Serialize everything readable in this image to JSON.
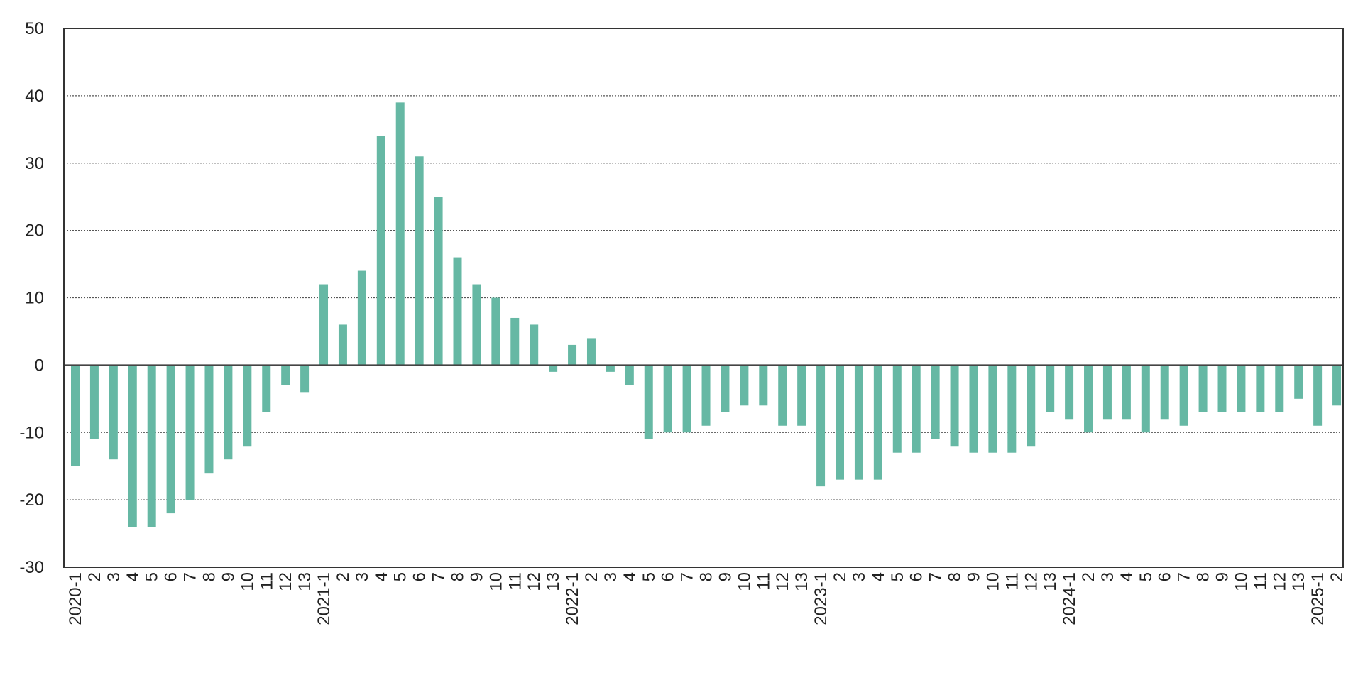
{
  "chart_data": {
    "type": "bar",
    "title": "",
    "xlabel": "",
    "ylabel": "",
    "ylim": [
      -30,
      50
    ],
    "yticks": [
      -30,
      -20,
      -10,
      0,
      10,
      20,
      30,
      40,
      50
    ],
    "grid": true,
    "grid_style": "dotted horizontal",
    "legend": false,
    "bar_color": "#66b8a4",
    "categories": [
      "2020-1",
      "2",
      "3",
      "4",
      "5",
      "6",
      "7",
      "8",
      "9",
      "10",
      "11",
      "12",
      "13",
      "2021-1",
      "2",
      "3",
      "4",
      "5",
      "6",
      "7",
      "8",
      "9",
      "10",
      "11",
      "12",
      "13",
      "2022-1",
      "2",
      "3",
      "4",
      "5",
      "6",
      "7",
      "8",
      "9",
      "10",
      "11",
      "12",
      "13",
      "2023-1",
      "2",
      "3",
      "4",
      "5",
      "6",
      "7",
      "8",
      "9",
      "10",
      "11",
      "12",
      "13",
      "2024-1",
      "2",
      "3",
      "4",
      "5",
      "6",
      "7",
      "8",
      "9",
      "10",
      "11",
      "12",
      "13",
      "2025-1",
      "2"
    ],
    "values": [
      -15,
      -11,
      -14,
      -24,
      -24,
      -22,
      -20,
      -16,
      -14,
      -12,
      -7,
      -3,
      -4,
      12,
      6,
      14,
      34,
      39,
      31,
      25,
      16,
      12,
      10,
      7,
      6,
      -1,
      3,
      4,
      -1,
      -3,
      -11,
      -10,
      -10,
      -9,
      -7,
      -6,
      -6,
      -9,
      -9,
      -18,
      -17,
      -17,
      -17,
      -13,
      -13,
      -11,
      -12,
      -13,
      -13,
      -13,
      -12,
      -7,
      -8,
      -10,
      -8,
      -8,
      -10,
      -8,
      -9,
      -7,
      -7,
      -7,
      -7,
      -7,
      -5,
      -9,
      -6
    ]
  }
}
